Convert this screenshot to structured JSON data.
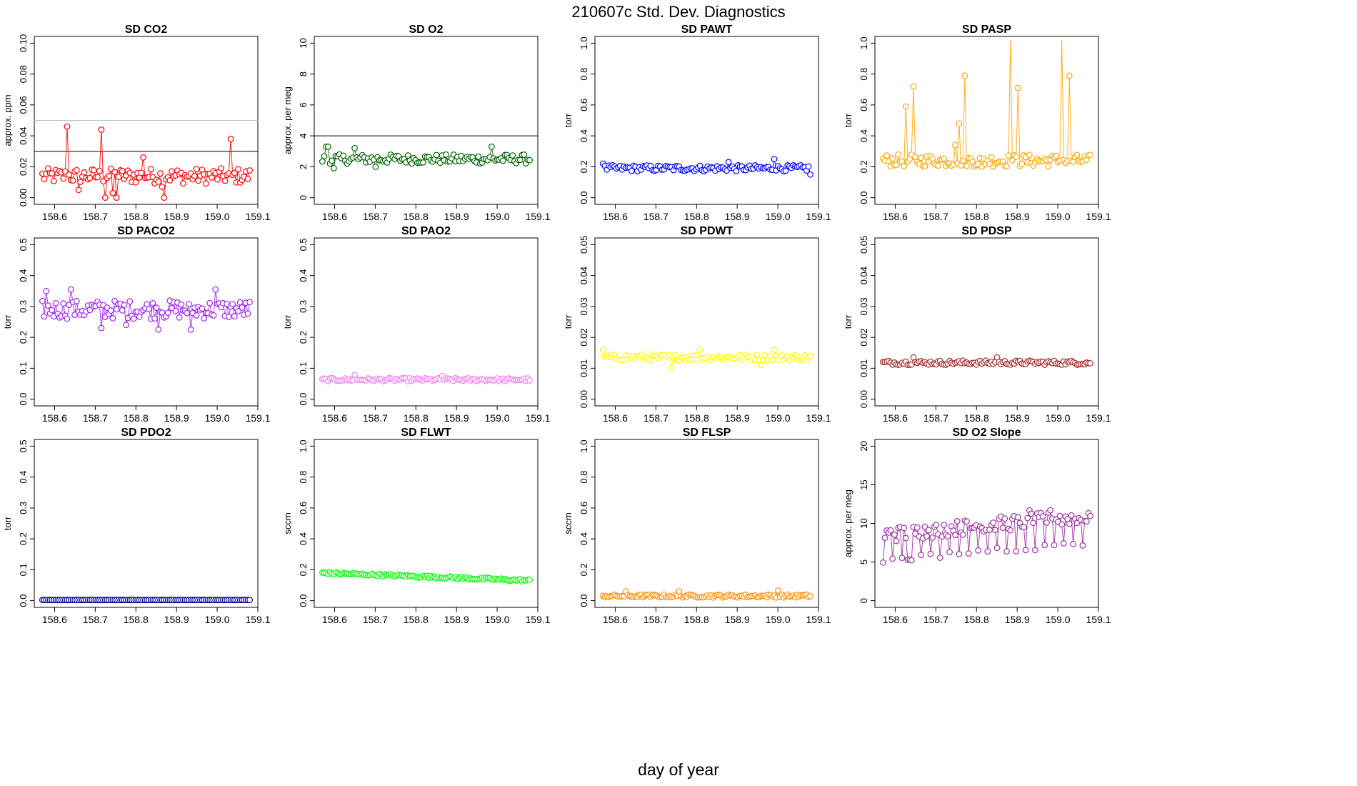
{
  "page": {
    "title": "210607c   Std. Dev. Diagnostics",
    "xlabel": "day of year"
  },
  "chart_data": [
    {
      "type": "scatter",
      "title": "SD CO2",
      "ylabel": "approx. ppm",
      "color": "#ff0000",
      "xlim": [
        158.55,
        159.1
      ],
      "ylim": [
        0,
        0.1
      ],
      "yticks": [
        "0.00",
        "0.02",
        "0.04",
        "0.06",
        "0.08",
        "0.10"
      ],
      "xticks": [
        "158.6",
        "158.7",
        "158.8",
        "158.9",
        "159.0",
        "159.1"
      ],
      "hlines": [
        {
          "y": 0.03,
          "color": "#000000"
        },
        {
          "y": 0.05,
          "color": "#bfbfbf"
        }
      ],
      "base": 0.014,
      "noise": 0.005,
      "spikes": [
        [
          0.063,
          0.046
        ],
        [
          0.143,
          0.044
        ],
        [
          0.463,
          0.038
        ],
        [
          0.25,
          0.026
        ],
        [
          0.088,
          0.005
        ],
        [
          0.155,
          0.0
        ],
        [
          0.175,
          0.003
        ],
        [
          0.181,
          0.0
        ],
        [
          0.301,
          0.0
        ],
        [
          0.296,
          0.007
        ]
      ]
    },
    {
      "type": "scatter",
      "title": "SD O2",
      "ylabel": "approx. per meg",
      "color": "#006400",
      "xlim": [
        158.55,
        159.1
      ],
      "ylim": [
        0,
        10
      ],
      "yticks": [
        "0",
        "2",
        "4",
        "6",
        "8",
        "10"
      ],
      "xticks": [
        "158.6",
        "158.7",
        "158.8",
        "158.9",
        "159.0",
        "159.1"
      ],
      "hlines": [
        {
          "y": 4,
          "color": "#000000"
        }
      ],
      "base": 2.5,
      "noise": 0.3,
      "spikes": [
        [
          0.01,
          3.3
        ],
        [
          0.015,
          3.3
        ],
        [
          0.415,
          3.3
        ],
        [
          0.08,
          3.2
        ],
        [
          0.13,
          2.0
        ],
        [
          0.03,
          1.9
        ]
      ]
    },
    {
      "type": "scatter",
      "title": "SD PAWT",
      "ylabel": "torr",
      "color": "#0000ff",
      "xlim": [
        158.55,
        159.1
      ],
      "ylim": [
        0,
        1
      ],
      "yticks": [
        "0.0",
        "0.2",
        "0.4",
        "0.6",
        "0.8",
        "1.0"
      ],
      "xticks": [
        "158.6",
        "158.7",
        "158.8",
        "158.9",
        "159.0",
        "159.1"
      ],
      "hlines": [],
      "base": 0.19,
      "noise": 0.02,
      "spikes": [
        [
          0.42,
          0.25
        ],
        [
          0.0,
          0.22
        ],
        [
          0.308,
          0.23
        ],
        [
          0.51,
          0.15
        ]
      ]
    },
    {
      "type": "scatter",
      "title": "SD PASP",
      "ylabel": "torr",
      "color": "#ffa500",
      "xlim": [
        158.55,
        159.1
      ],
      "ylim": [
        0,
        1
      ],
      "yticks": [
        "0.0",
        "0.2",
        "0.4",
        "0.6",
        "0.8",
        "1.0"
      ],
      "xticks": [
        "158.6",
        "158.7",
        "158.8",
        "158.9",
        "159.0",
        "159.1"
      ],
      "hlines": [],
      "base": 0.24,
      "noise": 0.04,
      "spikes": [
        [
          0.058,
          0.59
        ],
        [
          0.075,
          0.72
        ],
        [
          0.185,
          0.48
        ],
        [
          0.2,
          0.79
        ],
        [
          0.315,
          1.05
        ],
        [
          0.333,
          0.71
        ],
        [
          0.44,
          1.05
        ],
        [
          0.458,
          0.79
        ],
        [
          0.18,
          0.34
        ],
        [
          0.245,
          0.2
        ]
      ]
    },
    {
      "type": "scatter",
      "title": "SD PACO2",
      "ylabel": "torr",
      "color": "#a020f0",
      "xlim": [
        158.55,
        159.1
      ],
      "ylim": [
        0,
        0.5
      ],
      "yticks": [
        "0.0",
        "0.1",
        "0.2",
        "0.3",
        "0.4",
        "0.5"
      ],
      "xticks": [
        "158.6",
        "158.7",
        "158.8",
        "158.9",
        "159.0",
        "159.1"
      ],
      "hlines": [],
      "base": 0.29,
      "noise": 0.03,
      "spikes": [
        [
          0.008,
          0.35
        ],
        [
          0.068,
          0.355
        ],
        [
          0.428,
          0.355
        ],
        [
          0.145,
          0.23
        ],
        [
          0.285,
          0.225
        ],
        [
          0.366,
          0.225
        ],
        [
          0.208,
          0.24
        ]
      ]
    },
    {
      "type": "scatter",
      "title": "SD PAO2",
      "ylabel": "torr",
      "color": "#ee82ee",
      "xlim": [
        158.55,
        159.1
      ],
      "ylim": [
        0,
        0.5
      ],
      "yticks": [
        "0.0",
        "0.1",
        "0.2",
        "0.3",
        "0.4",
        "0.5"
      ],
      "xticks": [
        "158.6",
        "158.7",
        "158.8",
        "158.9",
        "159.0",
        "159.1"
      ],
      "hlines": [],
      "base": 0.063,
      "noise": 0.005,
      "spikes": [
        [
          0.08,
          0.078
        ],
        [
          0.295,
          0.075
        ]
      ]
    },
    {
      "type": "scatter",
      "title": "SD PDWT",
      "ylabel": "torr",
      "color": "#ffff00",
      "xlim": [
        158.55,
        159.1
      ],
      "ylim": [
        0,
        0.05
      ],
      "yticks": [
        "0.00",
        "0.01",
        "0.02",
        "0.03",
        "0.04",
        "0.05"
      ],
      "xticks": [
        "158.6",
        "158.7",
        "158.8",
        "158.9",
        "159.0",
        "159.1"
      ],
      "hlines": [],
      "base": 0.0135,
      "noise": 0.001,
      "spikes": [
        [
          0.0,
          0.016
        ],
        [
          0.238,
          0.016
        ],
        [
          0.421,
          0.016
        ],
        [
          0.17,
          0.01
        ],
        [
          0.39,
          0.011
        ]
      ]
    },
    {
      "type": "scatter",
      "title": "SD PDSP",
      "ylabel": "torr",
      "color": "#a52a2a",
      "xlim": [
        158.55,
        159.1
      ],
      "ylim": [
        0,
        0.05
      ],
      "yticks": [
        "0.00",
        "0.01",
        "0.02",
        "0.03",
        "0.04",
        "0.05"
      ],
      "xticks": [
        "158.6",
        "158.7",
        "158.8",
        "158.9",
        "159.0",
        "159.1"
      ],
      "hlines": [],
      "base": 0.0118,
      "noise": 0.0007,
      "spikes": [
        [
          0.075,
          0.0135
        ],
        [
          0.28,
          0.0135
        ]
      ]
    },
    {
      "type": "scatter",
      "title": "SD PDO2",
      "ylabel": "torr",
      "color": "#00008b",
      "xlim": [
        158.55,
        159.1
      ],
      "ylim": [
        0,
        0.5
      ],
      "yticks": [
        "0.0",
        "0.1",
        "0.2",
        "0.3",
        "0.4",
        "0.5"
      ],
      "xticks": [
        "158.6",
        "158.7",
        "158.8",
        "158.9",
        "159.0",
        "159.1"
      ],
      "hlines": [],
      "base": 0.002,
      "noise": 0.0,
      "spikes": []
    },
    {
      "type": "scatter",
      "title": "SD FLWT",
      "ylabel": "sccm",
      "color": "#00ff00",
      "xlim": [
        158.55,
        159.1
      ],
      "ylim": [
        0,
        1
      ],
      "yticks": [
        "0.0",
        "0.2",
        "0.4",
        "0.6",
        "0.8",
        "1.0"
      ],
      "xticks": [
        "158.6",
        "158.7",
        "158.8",
        "158.9",
        "159.0",
        "159.1"
      ],
      "hlines": [],
      "base": 0.145,
      "noise": 0.008,
      "trend": [
        0.18,
        0.13
      ],
      "spikes": []
    },
    {
      "type": "scatter",
      "title": "SD FLSP",
      "ylabel": "sccm",
      "color": "#ff8c00",
      "xlim": [
        158.55,
        159.1
      ],
      "ylim": [
        0,
        1
      ],
      "yticks": [
        "0.0",
        "0.2",
        "0.4",
        "0.6",
        "0.8",
        "1.0"
      ],
      "xticks": [
        "158.6",
        "158.7",
        "158.8",
        "158.9",
        "159.0",
        "159.1"
      ],
      "hlines": [],
      "base": 0.03,
      "noise": 0.01,
      "spikes": [
        [
          0.055,
          0.06
        ],
        [
          0.43,
          0.065
        ],
        [
          0.185,
          0.06
        ]
      ]
    },
    {
      "type": "scatter",
      "title": "SD O2 Slope",
      "ylabel": "approx. per meg",
      "color": "#9b30a0",
      "xlim": [
        158.55,
        159.1
      ],
      "ylim": [
        0,
        20
      ],
      "yticks": [
        "0",
        "5",
        "10",
        "15",
        "20"
      ],
      "xticks": [
        "158.6",
        "158.7",
        "158.8",
        "158.9",
        "159.0",
        "159.1"
      ],
      "hlines": [],
      "base": 9.5,
      "noise": 1.0,
      "trend": [
        8.5,
        11.0
      ],
      "dips": true,
      "spikes": [
        [
          0.06,
          5.3
        ],
        [
          0.065,
          5.3
        ],
        [
          0.36,
          11.7
        ],
        [
          0.41,
          11.7
        ]
      ]
    }
  ]
}
